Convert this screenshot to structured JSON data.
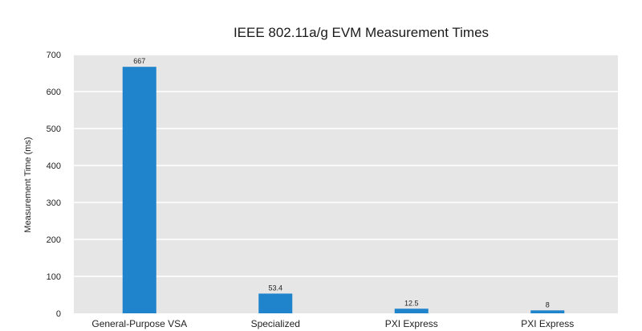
{
  "chart_data": {
    "type": "bar",
    "title": "IEEE 802.11a/g EVM Measurement Times",
    "xlabel": "",
    "ylabel": "Measurement Time (ms)",
    "categories": [
      "General-Purpose VSA",
      "Specialized",
      "PXI Express",
      "PXI Express"
    ],
    "values": [
      667,
      53.4,
      12.5,
      8
    ],
    "data_labels": [
      "667",
      "53.4",
      "12.5",
      "8"
    ],
    "ylim": [
      0,
      700
    ],
    "yticks": [
      0,
      100,
      200,
      300,
      400,
      500,
      600,
      700
    ],
    "grid": true,
    "legend": "none",
    "colors": {
      "bar": "#1f84cc",
      "plot_background": "#e6e6e6",
      "gridline": "#ffffff"
    }
  }
}
